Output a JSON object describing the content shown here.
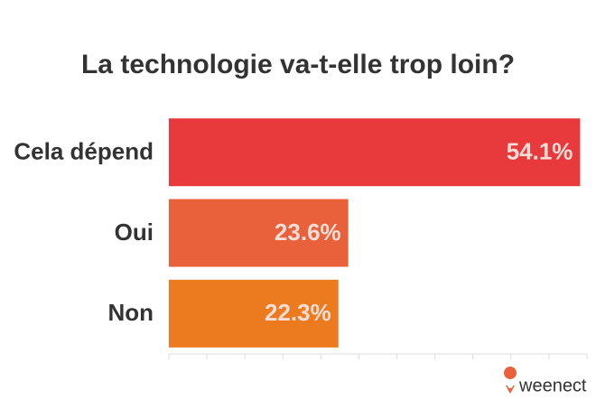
{
  "chart_data": {
    "type": "barh",
    "title": "La technologie va-t-elle trop loin?",
    "categories": [
      "Cela dépend",
      "Oui",
      "Non"
    ],
    "values": [
      54.1,
      23.6,
      22.3
    ],
    "value_labels": [
      "54.1%",
      "23.6%",
      "22.3%"
    ],
    "colors": [
      "#e8393d",
      "#e8613a",
      "#ec7a1f"
    ],
    "xlim": [
      0,
      55
    ],
    "xticks": [
      0,
      5,
      10,
      15,
      20,
      25,
      30,
      35,
      40,
      45,
      50,
      55
    ],
    "logo": "weenect"
  }
}
